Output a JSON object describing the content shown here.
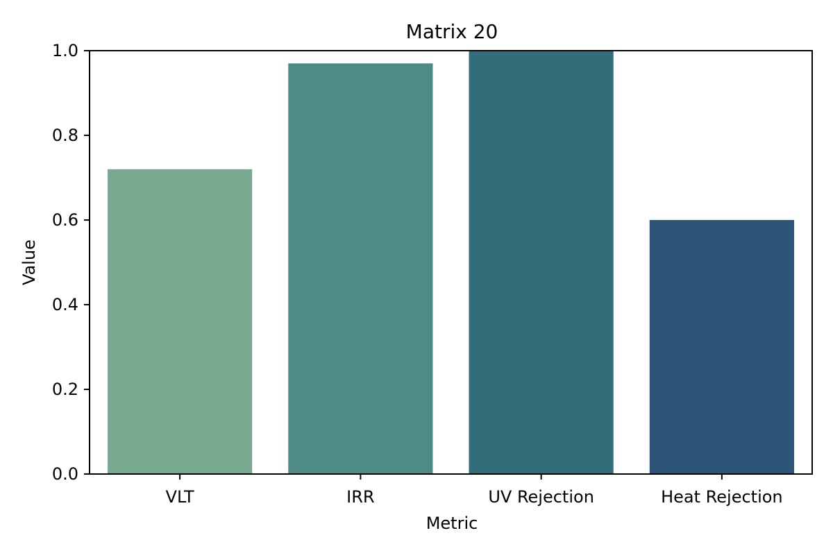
{
  "chart_data": {
    "type": "bar",
    "title": "Matrix 20",
    "xlabel": "Metric",
    "ylabel": "Value",
    "categories": [
      "VLT",
      "IRR",
      "UV Rejection",
      "Heat Rejection"
    ],
    "values": [
      0.72,
      0.97,
      1.0,
      0.6
    ],
    "colors": [
      "#78a88f",
      "#4f8b85",
      "#336d7a",
      "#2e5478"
    ],
    "ylim": [
      0,
      1.0
    ],
    "yticks": [
      "0.0",
      "0.2",
      "0.4",
      "0.6",
      "0.8",
      "1.0"
    ],
    "grid": false,
    "legend": "none"
  }
}
